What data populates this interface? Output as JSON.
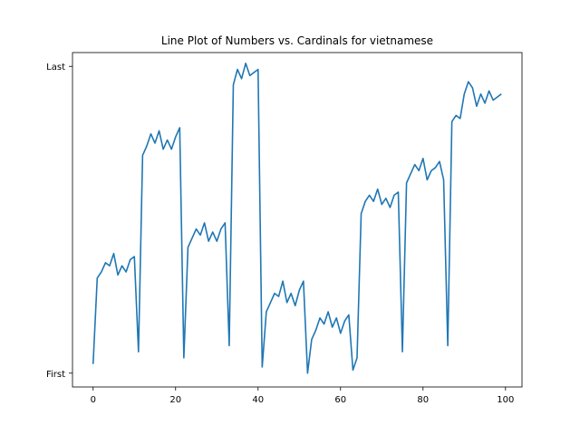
{
  "chart_data": {
    "type": "line",
    "title": "Line Plot of Numbers vs. Cardinals for vietnamese",
    "xlabel": "",
    "ylabel": "",
    "xlim": [
      -5,
      104
    ],
    "ylim": [
      -0.045,
      1.045
    ],
    "x_ticks": [
      0,
      20,
      40,
      60,
      80,
      100
    ],
    "y_ticks": [
      {
        "value": 0,
        "label": "First"
      },
      {
        "value": 1,
        "label": "Last"
      }
    ],
    "grid": false,
    "line_color": "#1f77b4",
    "series": [
      {
        "x": [
          0,
          1,
          2,
          3,
          4,
          5,
          6,
          7,
          8,
          9,
          10,
          11,
          12,
          13,
          14,
          15,
          16,
          17,
          18,
          19,
          20,
          21,
          22,
          23,
          24,
          25,
          26,
          27,
          28,
          29,
          30,
          31,
          32,
          33,
          34,
          35,
          36,
          37,
          38,
          39,
          40,
          41,
          42,
          43,
          44,
          45,
          46,
          47,
          48,
          49,
          50,
          51,
          52,
          53,
          54,
          55,
          56,
          57,
          58,
          59,
          60,
          61,
          62,
          63,
          64,
          65,
          66,
          67,
          68,
          69,
          70,
          71,
          72,
          73,
          74,
          75,
          76,
          77,
          78,
          79,
          80,
          81,
          82,
          83,
          84,
          85,
          86,
          87,
          88,
          89,
          90,
          91,
          92,
          93,
          94,
          95,
          96,
          97,
          98,
          99
        ],
        "values": [
          0.03,
          0.31,
          0.33,
          0.36,
          0.35,
          0.39,
          0.32,
          0.35,
          0.33,
          0.37,
          0.38,
          0.07,
          0.71,
          0.74,
          0.78,
          0.75,
          0.79,
          0.73,
          0.76,
          0.73,
          0.77,
          0.8,
          0.05,
          0.41,
          0.44,
          0.47,
          0.45,
          0.49,
          0.43,
          0.46,
          0.43,
          0.47,
          0.49,
          0.09,
          0.94,
          0.99,
          0.96,
          1.01,
          0.97,
          0.98,
          0.99,
          0.02,
          0.2,
          0.23,
          0.26,
          0.25,
          0.3,
          0.23,
          0.26,
          0.22,
          0.27,
          0.3,
          0.0,
          0.11,
          0.14,
          0.18,
          0.16,
          0.2,
          0.15,
          0.18,
          0.13,
          0.17,
          0.19,
          0.01,
          0.05,
          0.52,
          0.56,
          0.58,
          0.56,
          0.6,
          0.55,
          0.57,
          0.54,
          0.58,
          0.59,
          0.07,
          0.62,
          0.65,
          0.68,
          0.66,
          0.7,
          0.63,
          0.66,
          0.67,
          0.69,
          0.63,
          0.09,
          0.82,
          0.84,
          0.83,
          0.91,
          0.95,
          0.93,
          0.87,
          0.91,
          0.88,
          0.92,
          0.89,
          0.9,
          0.91
        ]
      }
    ]
  }
}
